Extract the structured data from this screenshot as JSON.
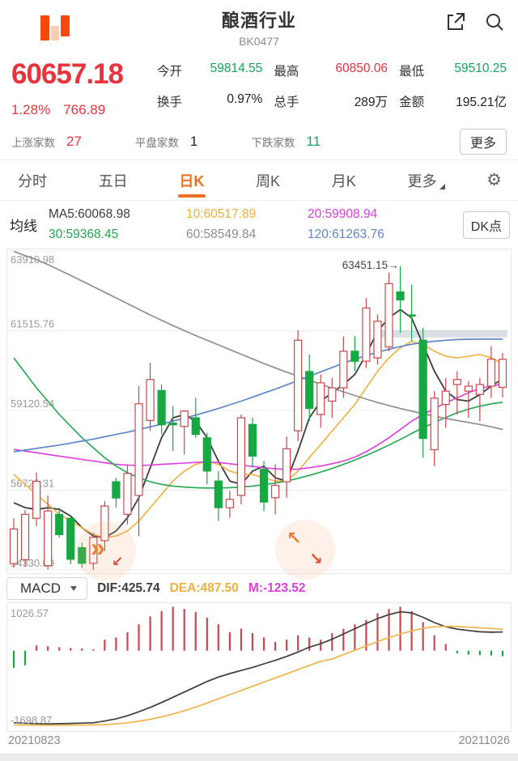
{
  "header": {
    "title": "酿酒行业",
    "code": "BK0477"
  },
  "quote": {
    "price": "60657.18",
    "change_pct": "1.28%",
    "change_amt": "766.89",
    "open_label": "今开",
    "open": "59814.55",
    "high_label": "最高",
    "high": "60850.06",
    "low_label": "最低",
    "low": "59510.25",
    "turnover_label": "换手",
    "turnover": "0.97%",
    "volume_label": "总手",
    "volume": "289万",
    "amount_label": "金额",
    "amount": "195.21亿",
    "up_label": "上涨家数",
    "up_count": "27",
    "flat_label": "平盘家数",
    "flat_count": "1",
    "down_label": "下跌家数",
    "down_count": "11",
    "more": "更多"
  },
  "tabs": {
    "items": [
      "分时",
      "五日",
      "日K",
      "周K",
      "月K",
      "更多"
    ]
  },
  "ma_panel": {
    "title": "均线",
    "items": [
      "MA5:60068.98",
      "10:60517.89",
      "20:59908.94",
      "30:59368.45",
      "60:58549.84",
      "120:61263.76"
    ],
    "dk_button": "DK点"
  },
  "macd_panel": {
    "selector": "MACD",
    "dif": "DIF:425.74",
    "dea": "DEA:487.50",
    "m": "M:-123.52"
  },
  "icons": {
    "gear": "⚙",
    "chevrons": "»",
    "hook": "↙",
    "up_left": "↖",
    "down_right": "↘",
    "arrow_right": "→"
  },
  "chart_data": {
    "type": "candlestick",
    "title": "酿酒行业 BK0477 日K",
    "x_labels": [
      "20210823",
      "20211026"
    ],
    "colors": {
      "up": "#c9484d",
      "down": "#17a843"
    },
    "main": {
      "ylim": [
        54330.09,
        63910.98
      ],
      "y_ticks": [
        63910.98,
        61515.76,
        59120.54,
        56725.31,
        54330.09
      ],
      "annotation": {
        "value": "63451.15",
        "high": 63451.15,
        "candle_index": 34
      },
      "band": {
        "from": 32,
        "to": 43,
        "value": 61420,
        "color": "#b9c2cf"
      },
      "candles": [
        [
          54520,
          55880,
          54400,
          55560
        ],
        [
          54640,
          56130,
          54450,
          56000
        ],
        [
          55880,
          57260,
          55650,
          56990
        ],
        [
          54460,
          56570,
          54340,
          56100
        ],
        [
          56000,
          56200,
          55300,
          55390
        ],
        [
          55880,
          55950,
          54500,
          54650
        ],
        [
          55000,
          55150,
          54400,
          54530
        ],
        [
          54530,
          55450,
          54330,
          55310
        ],
        [
          55210,
          56400,
          54900,
          56250
        ],
        [
          56980,
          57100,
          56200,
          56490
        ],
        [
          56000,
          57500,
          55700,
          57230
        ],
        [
          56570,
          59860,
          55340,
          59320
        ],
        [
          58820,
          60550,
          58500,
          60050
        ],
        [
          59720,
          59900,
          58400,
          58690
        ],
        [
          58740,
          59250,
          57900,
          58690
        ],
        [
          58640,
          59130,
          57800,
          59100
        ],
        [
          58900,
          59500,
          58300,
          58400
        ],
        [
          58300,
          58450,
          56900,
          57300
        ],
        [
          57000,
          57300,
          55800,
          56200
        ],
        [
          56200,
          56700,
          55900,
          56450
        ],
        [
          56570,
          59000,
          56300,
          58900
        ],
        [
          58700,
          58900,
          57400,
          57750
        ],
        [
          57350,
          57600,
          56100,
          56370
        ],
        [
          56500,
          57500,
          56000,
          56870
        ],
        [
          56980,
          58340,
          56500,
          57970
        ],
        [
          58510,
          61530,
          58200,
          61230
        ],
        [
          60290,
          60800,
          58800,
          59180
        ],
        [
          59000,
          60200,
          58600,
          59950
        ],
        [
          59400,
          60100,
          58900,
          59800
        ],
        [
          59800,
          61350,
          59500,
          60900
        ],
        [
          60900,
          61350,
          60300,
          60600
        ],
        [
          60600,
          62500,
          60400,
          62200
        ],
        [
          60700,
          62000,
          60500,
          61800
        ],
        [
          61030,
          63260,
          60900,
          62930
        ],
        [
          62680,
          63451.15,
          61450,
          62440
        ],
        [
          61990,
          62900,
          61200,
          61960
        ],
        [
          61230,
          61600,
          57700,
          58280
        ],
        [
          57940,
          59700,
          57450,
          59490
        ],
        [
          59300,
          60100,
          58600,
          59700
        ],
        [
          59900,
          60300,
          59000,
          60050
        ],
        [
          59700,
          60000,
          58900,
          59850
        ],
        [
          59600,
          60100,
          58800,
          59900
        ],
        [
          59850,
          61050,
          59500,
          60660
        ],
        [
          59814.55,
          60850.06,
          59510.25,
          60657.18
        ]
      ],
      "ma_lines": [
        {
          "name": "MA5",
          "color": "#3d3d3d",
          "width": 1.8,
          "values": [
            56350,
            56200,
            56150,
            56200,
            56150,
            55950,
            55600,
            55350,
            55300,
            55500,
            55900,
            56500,
            57400,
            58300,
            58900,
            59000,
            58800,
            58300,
            57600,
            57000,
            56900,
            57300,
            57450,
            57100,
            57000,
            57900,
            58900,
            59400,
            59650,
            59900,
            60200,
            60800,
            61500,
            61900,
            62150,
            61900,
            61100,
            60300,
            59700,
            59450,
            59400,
            59600,
            59850,
            60068.98
          ]
        },
        {
          "name": "MA10",
          "color": "#f0b03c",
          "width": 1.6,
          "values": [
            57200,
            56900,
            56600,
            56300,
            56000,
            55800,
            55600,
            55400,
            55300,
            55350,
            55500,
            55800,
            56200,
            56600,
            57000,
            57300,
            57500,
            57600,
            57500,
            57300,
            57200,
            57200,
            57100,
            57000,
            57000,
            57300,
            57700,
            58100,
            58500,
            58900,
            59300,
            59800,
            60300,
            60700,
            61000,
            61200,
            61100,
            60900,
            60750,
            60700,
            60750,
            60800,
            60700,
            60517.89
          ]
        },
        {
          "name": "MA20",
          "color": "#dd3ddd",
          "width": 1.6,
          "values": [
            57950,
            57900,
            57850,
            57800,
            57750,
            57700,
            57650,
            57600,
            57550,
            57500,
            57480,
            57470,
            57480,
            57500,
            57520,
            57540,
            57560,
            57570,
            57560,
            57520,
            57480,
            57440,
            57400,
            57370,
            57350,
            57360,
            57400,
            57450,
            57520,
            57600,
            57720,
            57880,
            58080,
            58300,
            58550,
            58800,
            59000,
            59180,
            59350,
            59500,
            59650,
            59780,
            59860,
            59908.94
          ]
        },
        {
          "name": "MA30",
          "color": "#21a74f",
          "width": 1.6,
          "values": [
            60700,
            60250,
            59800,
            59400,
            59000,
            58650,
            58300,
            58000,
            57700,
            57450,
            57250,
            57100,
            56980,
            56900,
            56850,
            56820,
            56800,
            56790,
            56790,
            56800,
            56820,
            56850,
            56890,
            56940,
            57000,
            57080,
            57170,
            57270,
            57380,
            57500,
            57630,
            57770,
            57920,
            58080,
            58250,
            58430,
            58600,
            58760,
            58910,
            59050,
            59160,
            59250,
            59320,
            59368.45
          ]
        },
        {
          "name": "MA60",
          "color": "#8e8e8e",
          "width": 1.7,
          "values": [
            63900,
            63770,
            63650,
            63500,
            63340,
            63180,
            63010,
            62840,
            62670,
            62500,
            62330,
            62160,
            61990,
            61830,
            61670,
            61520,
            61370,
            61230,
            61090,
            60950,
            60810,
            60670,
            60530,
            60400,
            60270,
            60150,
            60030,
            59910,
            59790,
            59680,
            59570,
            59460,
            59360,
            59270,
            59180,
            59100,
            59020,
            58950,
            58880,
            58820,
            58760,
            58700,
            58630,
            58549.84
          ]
        },
        {
          "name": "MA120",
          "color": "#5f86c9",
          "width": 1.7,
          "values": [
            57880,
            57930,
            57980,
            58030,
            58080,
            58140,
            58200,
            58260,
            58330,
            58400,
            58470,
            58550,
            58630,
            58710,
            58800,
            58890,
            58980,
            59080,
            59180,
            59290,
            59400,
            59520,
            59640,
            59760,
            59890,
            60020,
            60150,
            60280,
            60410,
            60540,
            60660,
            60770,
            60870,
            60960,
            61040,
            61110,
            61160,
            61200,
            61230,
            61250,
            61260,
            61264,
            61264,
            61263.76
          ]
        }
      ],
      "badges": [
        {
          "x": 122,
          "y": 373,
          "type": "fast-forward"
        },
        {
          "x": 368,
          "y": 371,
          "type": "trade-arrows"
        }
      ]
    },
    "macd": {
      "ylim": [
        -1698.87,
        1026.57
      ],
      "y_ticks": [
        1026.57,
        -1698.87
      ],
      "histogram": [
        -390,
        -330,
        120,
        100,
        80,
        60,
        50,
        30,
        250,
        300,
        420,
        600,
        780,
        900,
        1000,
        950,
        880,
        750,
        600,
        420,
        500,
        400,
        300,
        200,
        250,
        350,
        300,
        250,
        400,
        500,
        600,
        700,
        850,
        950,
        1000,
        900,
        650,
        350,
        150,
        -60,
        -90,
        -100,
        -110,
        -123.52
      ],
      "dif": {
        "color": "#3d3d3d",
        "values": [
          -1640,
          -1650,
          -1660,
          -1665,
          -1660,
          -1655,
          -1648,
          -1640,
          -1600,
          -1550,
          -1480,
          -1390,
          -1290,
          -1180,
          -1060,
          -940,
          -820,
          -700,
          -600,
          -520,
          -450,
          -380,
          -300,
          -220,
          -130,
          -30,
          80,
          160,
          260,
          380,
          500,
          620,
          730,
          820,
          885,
          860,
          760,
          640,
          545,
          490,
          460,
          430,
          420,
          425.74
        ]
      },
      "dea": {
        "color": "#f0b54a",
        "values": [
          -1690,
          -1692,
          -1694,
          -1695,
          -1695,
          -1694,
          -1692,
          -1688,
          -1680,
          -1665,
          -1640,
          -1605,
          -1560,
          -1505,
          -1440,
          -1365,
          -1280,
          -1190,
          -1095,
          -1000,
          -905,
          -810,
          -715,
          -620,
          -525,
          -430,
          -335,
          -240,
          -190,
          -90,
          10,
          110,
          205,
          300,
          380,
          450,
          510,
          545,
          555,
          550,
          535,
          520,
          505,
          487.5
        ]
      }
    }
  }
}
